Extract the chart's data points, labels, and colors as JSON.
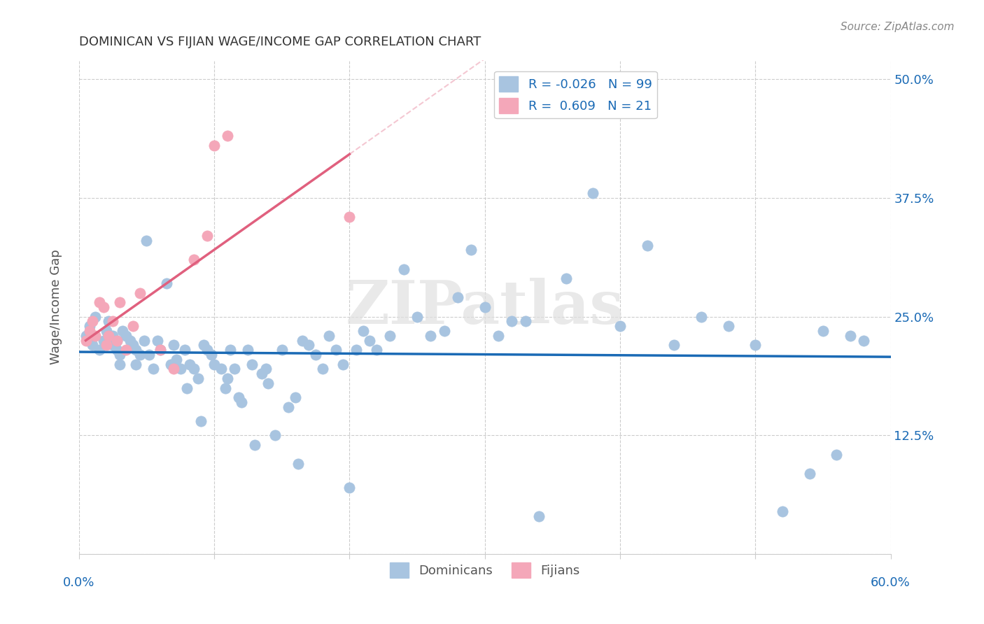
{
  "title": "DOMINICAN VS FIJIAN WAGE/INCOME GAP CORRELATION CHART",
  "source": "Source: ZipAtlas.com",
  "ylabel": "Wage/Income Gap",
  "ytick_labels": [
    "",
    "12.5%",
    "25.0%",
    "37.5%",
    "50.0%"
  ],
  "ytick_values": [
    0,
    0.125,
    0.25,
    0.375,
    0.5
  ],
  "xtick_values": [
    0.0,
    0.1,
    0.2,
    0.3,
    0.4,
    0.5,
    0.6
  ],
  "xmin": 0.0,
  "xmax": 0.6,
  "ymin": 0.0,
  "ymax": 0.52,
  "watermark": "ZIPatlas",
  "legend_blue_label": "R = -0.026   N = 99",
  "legend_pink_label": "R =  0.609   N = 21",
  "legend_bottom_blue": "Dominicans",
  "legend_bottom_pink": "Fijians",
  "blue_color": "#a8c4e0",
  "pink_color": "#f4a7b9",
  "blue_line_color": "#1a6ab5",
  "pink_line_color": "#e0607e",
  "dominican_x": [
    0.005,
    0.008,
    0.01,
    0.012,
    0.015,
    0.018,
    0.02,
    0.022,
    0.022,
    0.025,
    0.025,
    0.028,
    0.028,
    0.03,
    0.03,
    0.032,
    0.035,
    0.038,
    0.04,
    0.042,
    0.042,
    0.045,
    0.048,
    0.05,
    0.052,
    0.055,
    0.058,
    0.06,
    0.065,
    0.068,
    0.07,
    0.072,
    0.075,
    0.078,
    0.08,
    0.082,
    0.085,
    0.088,
    0.09,
    0.092,
    0.095,
    0.098,
    0.1,
    0.105,
    0.108,
    0.11,
    0.112,
    0.115,
    0.118,
    0.12,
    0.125,
    0.128,
    0.13,
    0.135,
    0.138,
    0.14,
    0.145,
    0.15,
    0.155,
    0.16,
    0.162,
    0.165,
    0.17,
    0.175,
    0.18,
    0.185,
    0.19,
    0.195,
    0.2,
    0.205,
    0.21,
    0.215,
    0.22,
    0.23,
    0.24,
    0.25,
    0.26,
    0.27,
    0.28,
    0.29,
    0.3,
    0.31,
    0.32,
    0.33,
    0.34,
    0.36,
    0.38,
    0.4,
    0.42,
    0.44,
    0.46,
    0.48,
    0.5,
    0.52,
    0.54,
    0.55,
    0.56,
    0.57,
    0.58
  ],
  "dominican_y": [
    0.23,
    0.24,
    0.22,
    0.25,
    0.215,
    0.225,
    0.235,
    0.23,
    0.245,
    0.22,
    0.23,
    0.215,
    0.225,
    0.2,
    0.21,
    0.235,
    0.23,
    0.225,
    0.22,
    0.215,
    0.2,
    0.21,
    0.225,
    0.33,
    0.21,
    0.195,
    0.225,
    0.215,
    0.285,
    0.2,
    0.22,
    0.205,
    0.195,
    0.215,
    0.175,
    0.2,
    0.195,
    0.185,
    0.14,
    0.22,
    0.215,
    0.21,
    0.2,
    0.195,
    0.175,
    0.185,
    0.215,
    0.195,
    0.165,
    0.16,
    0.215,
    0.2,
    0.115,
    0.19,
    0.195,
    0.18,
    0.125,
    0.215,
    0.155,
    0.165,
    0.095,
    0.225,
    0.22,
    0.21,
    0.195,
    0.23,
    0.215,
    0.2,
    0.07,
    0.215,
    0.235,
    0.225,
    0.215,
    0.23,
    0.3,
    0.25,
    0.23,
    0.235,
    0.27,
    0.32,
    0.26,
    0.23,
    0.245,
    0.245,
    0.04,
    0.29,
    0.38,
    0.24,
    0.325,
    0.22,
    0.25,
    0.24,
    0.22,
    0.045,
    0.085,
    0.235,
    0.105,
    0.23,
    0.225
  ],
  "fijian_x": [
    0.005,
    0.008,
    0.01,
    0.012,
    0.015,
    0.018,
    0.02,
    0.022,
    0.025,
    0.028,
    0.03,
    0.035,
    0.04,
    0.045,
    0.06,
    0.07,
    0.085,
    0.095,
    0.1,
    0.11,
    0.2
  ],
  "fijian_y": [
    0.225,
    0.235,
    0.245,
    0.23,
    0.265,
    0.26,
    0.22,
    0.23,
    0.245,
    0.225,
    0.265,
    0.215,
    0.24,
    0.275,
    0.215,
    0.195,
    0.31,
    0.335,
    0.43,
    0.44,
    0.355
  ]
}
